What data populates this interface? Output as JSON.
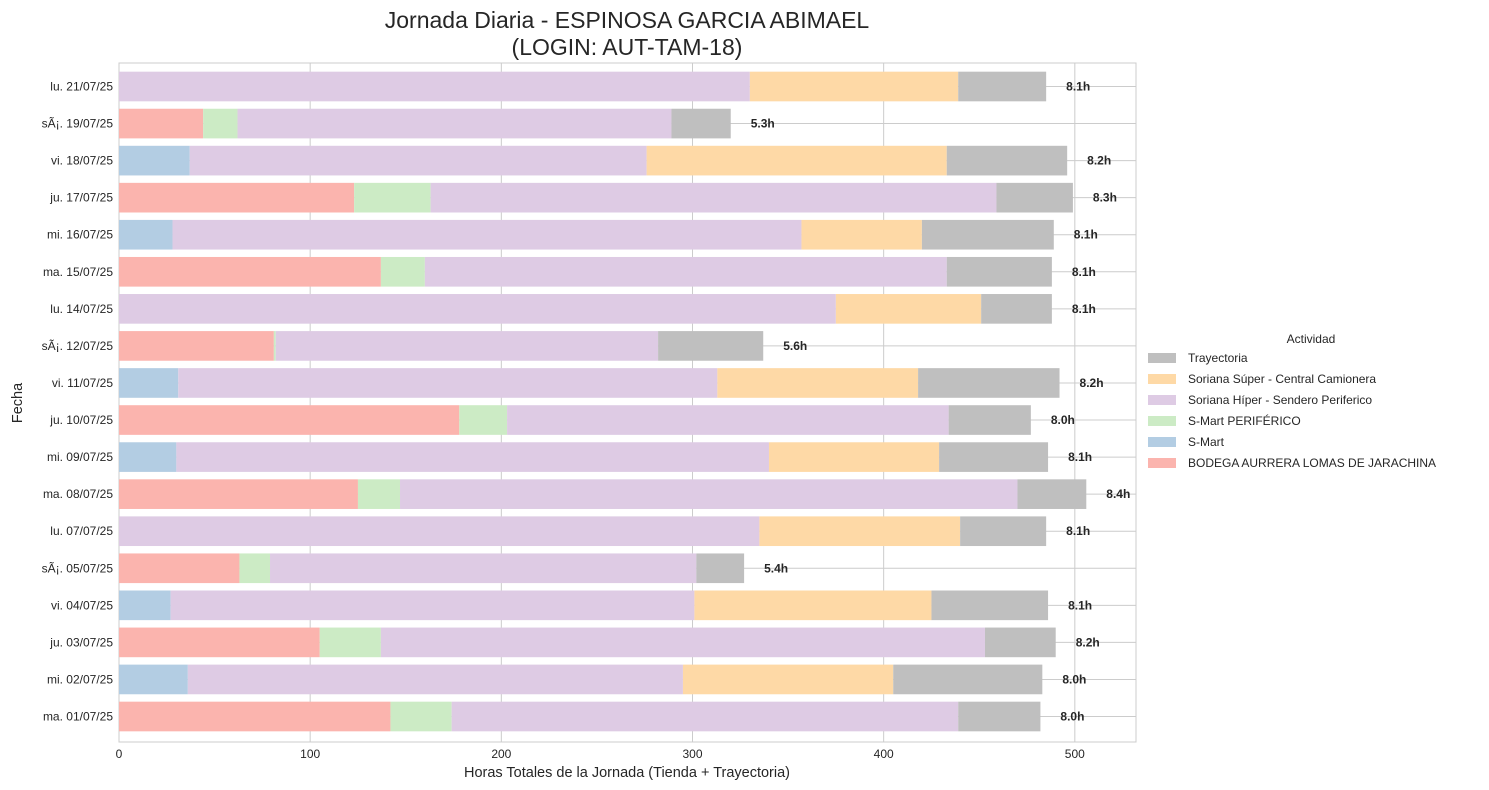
{
  "chart_data": {
    "type": "bar",
    "orientation": "horizontal",
    "stacked": true,
    "title": [
      "Jornada Diaria - ESPINOSA GARCIA ABIMAEL",
      "(LOGIN: AUT-TAM-18)"
    ],
    "xlabel": "Horas Totales de la Jornada (Tienda + Trayectoria)",
    "ylabel": "Fecha",
    "xlim": [
      0,
      532
    ],
    "xticks": [
      0,
      100,
      200,
      300,
      400,
      500
    ],
    "grid": true,
    "legend": {
      "title": "Actividad",
      "position": "right"
    },
    "categories": [
      "lu. 21/07/25",
      "sÃ¡. 19/07/25",
      "vi. 18/07/25",
      "ju. 17/07/25",
      "mi. 16/07/25",
      "ma. 15/07/25",
      "lu. 14/07/25",
      "sÃ¡. 12/07/25",
      "vi. 11/07/25",
      "ju. 10/07/25",
      "mi. 09/07/25",
      "ma. 08/07/25",
      "lu. 07/07/25",
      "sÃ¡. 05/07/25",
      "vi. 04/07/25",
      "ju. 03/07/25",
      "mi. 02/07/25",
      "ma. 01/07/25"
    ],
    "series": [
      {
        "name": "BODEGA AURRERA LOMAS DE JARACHINA",
        "color": "#fbb4ae",
        "values": [
          0,
          44,
          0,
          123,
          0,
          137,
          0,
          81,
          0,
          178,
          0,
          125,
          0,
          63,
          0,
          105,
          0,
          142
        ]
      },
      {
        "name": "S-Mart",
        "color": "#b3cde3",
        "values": [
          0,
          0,
          37,
          0,
          28,
          0,
          0,
          0,
          31,
          0,
          30,
          0,
          0,
          0,
          27,
          0,
          36,
          0
        ]
      },
      {
        "name": "S-Mart PERIFÉRICO",
        "color": "#ccebc5",
        "values": [
          0,
          18,
          0,
          40,
          0,
          23,
          0,
          1,
          0,
          25,
          0,
          22,
          0,
          16,
          0,
          32,
          0,
          32
        ]
      },
      {
        "name": "Soriana Híper - Sendero Periferico",
        "color": "#decbe4",
        "values": [
          330,
          227,
          239,
          296,
          329,
          273,
          375,
          200,
          282,
          231,
          310,
          323,
          335,
          223,
          274,
          316,
          259,
          265
        ]
      },
      {
        "name": "Soriana Súper - Central Camionera",
        "color": "#fed9a6",
        "values": [
          109,
          0,
          157,
          0,
          63,
          0,
          76,
          0,
          105,
          0,
          89,
          0,
          105,
          0,
          124,
          0,
          110,
          0
        ]
      },
      {
        "name": "Trayectoria",
        "color": "#bfbfbf",
        "values": [
          46,
          31,
          63,
          40,
          69,
          55,
          37,
          55,
          74,
          43,
          57,
          36,
          45,
          25,
          61,
          37,
          78,
          43
        ]
      }
    ],
    "totals": [
      "8.1h",
      "5.3h",
      "8.2h",
      "8.3h",
      "8.1h",
      "8.1h",
      "8.1h",
      "5.6h",
      "8.2h",
      "8.0h",
      "8.1h",
      "8.4h",
      "8.1h",
      "5.4h",
      "8.1h",
      "8.2h",
      "8.0h",
      "8.0h"
    ],
    "legend_order": [
      "Trayectoria",
      "Soriana Súper - Central Camionera",
      "Soriana Híper - Sendero Periferico",
      "S-Mart PERIFÉRICO",
      "S-Mart",
      "BODEGA AURRERA LOMAS DE JARACHINA"
    ]
  }
}
